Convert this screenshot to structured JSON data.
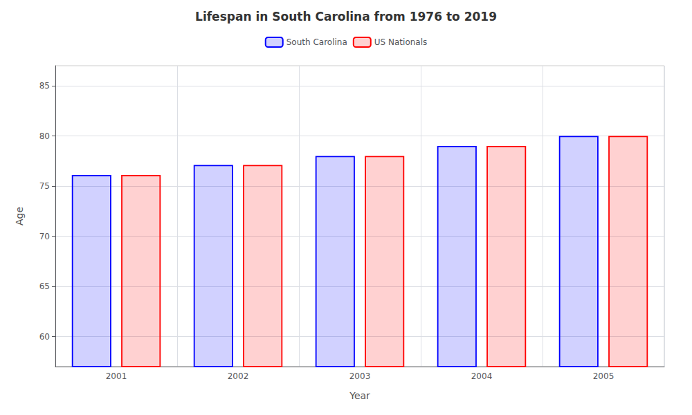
{
  "chart_data": {
    "type": "bar",
    "title": "Lifespan in South Carolina from 1976 to 2019",
    "xlabel": "Year",
    "ylabel": "Age",
    "categories": [
      "2001",
      "2002",
      "2003",
      "2004",
      "2005"
    ],
    "series": [
      {
        "name": "South Carolina",
        "color": "#0000ff",
        "values": [
          76.1,
          77.1,
          78.0,
          79.0,
          80.0
        ]
      },
      {
        "name": "US Nationals",
        "color": "#ff0000",
        "values": [
          76.1,
          77.1,
          78.0,
          79.0,
          80.0
        ]
      }
    ],
    "ylim": [
      57,
      87
    ],
    "yticks": [
      60,
      65,
      70,
      75,
      80,
      85
    ],
    "grid": true,
    "legend": "top"
  }
}
